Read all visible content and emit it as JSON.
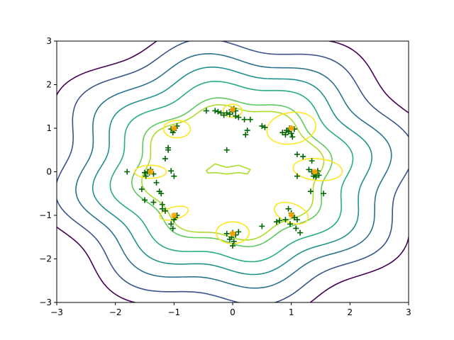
{
  "chart_data": {
    "type": "contour",
    "title": "",
    "xlabel": "",
    "ylabel": "",
    "xlim": [
      -3,
      3
    ],
    "ylim": [
      -3,
      3
    ],
    "xticks": [
      "−3",
      "−2",
      "−1",
      "0",
      "1",
      "2",
      "3"
    ],
    "yticks": [
      "−3",
      "−2",
      "−1",
      "0",
      "1",
      "2",
      "3"
    ],
    "grid": false,
    "colormap": "viridis",
    "contour_levels": [
      {
        "name": "level-1",
        "color": "#440154",
        "r": 3.3
      },
      {
        "name": "level-2",
        "color": "#3b528b",
        "r": 2.95
      },
      {
        "name": "level-3",
        "color": "#2c728e",
        "r": 2.6
      },
      {
        "name": "level-4",
        "color": "#21918c",
        "r": 2.3
      },
      {
        "name": "level-5",
        "color": "#27ad81",
        "r": 2.0
      },
      {
        "name": "level-6",
        "color": "#5ec962",
        "r": 1.65
      },
      {
        "name": "level-7",
        "color": "#addc30",
        "r": 1.5
      }
    ],
    "mode_contours": [
      {
        "cx": 0.0,
        "cy": 1.4,
        "rx": 0.16,
        "ry": 0.15,
        "rot": 0
      },
      {
        "cx": 1.0,
        "cy": 1.0,
        "rx": 0.42,
        "ry": 0.36,
        "rot": 10
      },
      {
        "cx": 1.45,
        "cy": 0.05,
        "rx": 0.42,
        "ry": 0.25,
        "rot": -5
      },
      {
        "cx": 1.0,
        "cy": -0.95,
        "rx": 0.3,
        "ry": 0.22,
        "rot": -20
      },
      {
        "cx": 0.0,
        "cy": -1.4,
        "rx": 0.28,
        "ry": 0.25,
        "rot": 0
      },
      {
        "cx": -1.0,
        "cy": -0.95,
        "rx": 0.25,
        "ry": 0.14,
        "rot": 15
      },
      {
        "cx": -1.4,
        "cy": 0.0,
        "rx": 0.27,
        "ry": 0.15,
        "rot": 0
      },
      {
        "cx": -0.95,
        "cy": 0.98,
        "rx": 0.23,
        "ry": 0.2,
        "rot": 0
      }
    ],
    "mode_contour_color": "#fde725",
    "inner_contour": {
      "color": "#addc30",
      "x": [
        -0.45,
        -0.3,
        -0.1,
        0.1,
        0.3,
        0.25,
        0.1,
        -0.1,
        -0.3,
        -0.42
      ],
      "y": [
        0.03,
        0.18,
        0.1,
        0.15,
        0.05,
        -0.05,
        -0.02,
        -0.05,
        -0.02,
        -0.03
      ]
    },
    "mode_centers": {
      "color": "#ffa500",
      "x": [
        0.0,
        1.0,
        1.4,
        1.0,
        0.0,
        -1.0,
        -1.4,
        -1.0
      ],
      "y": [
        1.43,
        1.0,
        0.0,
        -0.99,
        -1.42,
        -1.0,
        0.0,
        1.0
      ]
    },
    "samples": {
      "color": "#006400",
      "marker": "+",
      "x": [
        -0.45,
        -0.3,
        -0.25,
        -0.2,
        -0.15,
        -0.1,
        -0.05,
        0.05,
        0.1,
        0.2,
        0.3,
        0.25,
        0.22,
        0.5,
        0.55,
        0.02,
        0.05,
        -0.02,
        0.0,
        0.85,
        0.9,
        0.95,
        1.0,
        1.02,
        0.92,
        0.97,
        1.05,
        1.1,
        1.2,
        1.3,
        1.35,
        1.4,
        1.45,
        1.38,
        1.42,
        1.47,
        1.1,
        1.33,
        1.55,
        1.35,
        0.95,
        1.0,
        1.02,
        1.05,
        1.1,
        0.98,
        1.08,
        0.9,
        0.75,
        0.8,
        1.15,
        0.5,
        0.0,
        -0.02,
        0.05,
        0.1,
        -0.05,
        0.02,
        0.0,
        -0.1,
        -1.0,
        -0.98,
        -1.02,
        -1.05,
        -0.95,
        -1.1,
        -1.15,
        -1.1,
        -1.05,
        -1.25,
        -1.22,
        -1.5,
        -1.45,
        -1.4,
        -1.35,
        -1.48,
        -1.42,
        -1.55,
        -1.3,
        -1.8,
        -1.0,
        -1.35,
        -1.5,
        -0.95,
        -1.0,
        -1.05,
        -1.02,
        -0.98,
        -1.2,
        -1.2,
        -1.15,
        -0.1
      ],
      "y": [
        1.4,
        1.4,
        1.38,
        1.35,
        1.3,
        1.35,
        1.32,
        1.28,
        1.25,
        1.2,
        1.2,
        0.95,
        0.85,
        1.05,
        1.02,
        1.45,
        1.4,
        1.42,
        1.38,
        0.9,
        0.85,
        0.92,
        0.88,
        0.8,
        0.95,
        1.0,
        0.98,
        0.4,
        0.35,
        0.05,
        0.0,
        -0.05,
        0.02,
        -0.1,
        -0.12,
        -0.08,
        -0.1,
        -0.45,
        -0.5,
        0.25,
        -0.85,
        -0.95,
        -1.0,
        -1.05,
        -1.1,
        -1.2,
        -1.3,
        -1.1,
        -1.15,
        -1.12,
        -1.4,
        -1.25,
        -1.4,
        -1.5,
        -1.45,
        -1.38,
        -1.55,
        -1.6,
        -1.7,
        -1.42,
        0.95,
        1.0,
        0.9,
        0.98,
        1.05,
        0.55,
        0.3,
        0.5,
        0.02,
        -0.45,
        -0.5,
        -0.02,
        0.0,
        0.05,
        -0.05,
        -0.1,
        -0.02,
        -0.4,
        -0.25,
        0.0,
        -0.1,
        -0.7,
        -0.65,
        -1.0,
        -1.1,
        -1.2,
        -1.3,
        -1.05,
        -0.75,
        -0.85,
        -0.9,
        0.5
      ]
    }
  }
}
